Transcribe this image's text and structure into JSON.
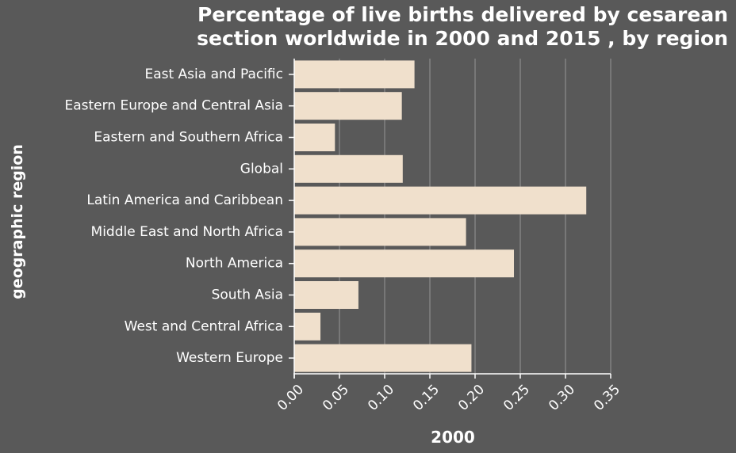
{
  "chart_data": {
    "type": "bar",
    "orientation": "horizontal",
    "title": "Percentage of live births delivered by cesarean section worldwide in 2000 and 2015 , by region",
    "xlabel": "2000",
    "ylabel": "geographic region",
    "categories": [
      "East Asia and Pacific",
      "Eastern Europe and Central Asia",
      "Eastern and Southern Africa",
      "Global",
      "Latin America and Caribbean",
      "Middle East and North Africa",
      "North America",
      "South Asia",
      "West and Central Africa",
      "Western Europe"
    ],
    "values": [
      0.133,
      0.119,
      0.045,
      0.12,
      0.323,
      0.19,
      0.243,
      0.071,
      0.029,
      0.196
    ],
    "xlim": [
      0,
      0.35
    ],
    "xticks": [
      "0.00",
      "0.05",
      "0.10",
      "0.15",
      "0.20",
      "0.25",
      "0.30",
      "0.35"
    ],
    "grid": true,
    "colors": {
      "background": "#595959",
      "bar": "#f0e0cc",
      "grid": "#8c8c8c",
      "text": "#ffffff"
    }
  }
}
